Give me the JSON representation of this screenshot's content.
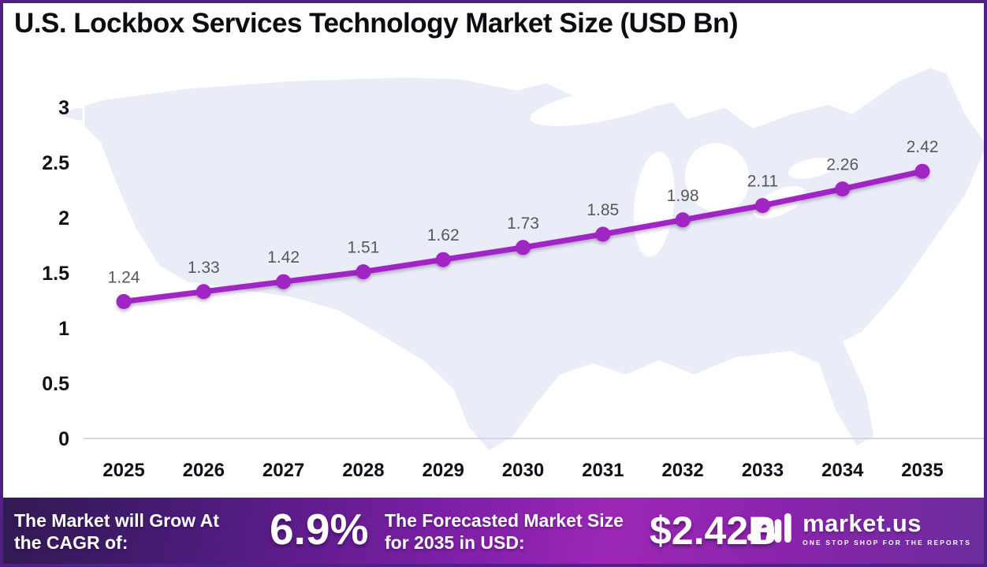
{
  "chart_data": {
    "type": "line",
    "title": "U.S. Lockbox Services Technology Market Size (USD Bn)",
    "categories": [
      "2025",
      "2026",
      "2027",
      "2028",
      "2029",
      "2030",
      "2031",
      "2032",
      "2033",
      "2034",
      "2035"
    ],
    "values": [
      1.24,
      1.33,
      1.42,
      1.51,
      1.62,
      1.73,
      1.85,
      1.98,
      2.11,
      2.26,
      2.42
    ],
    "xlabel": "",
    "ylabel": "",
    "ylim": [
      0,
      3
    ],
    "yticks": [
      0,
      0.5,
      1,
      1.5,
      2,
      2.5,
      3
    ],
    "grid": false,
    "legend": false,
    "line_color": "#A125C4",
    "marker_color": "#A125C4",
    "data_label_color": "#58585B",
    "axis_text_color": "#101018",
    "axis_line_color": "#FFFFFF",
    "baseline_color": "#D6D6DE",
    "map_fill_color": "#EAEDF8",
    "background_map": "united-states-silhouette"
  },
  "footer": {
    "cagr": {
      "label": "The Market will Grow At the CAGR of:",
      "value": "6.9%"
    },
    "forecast": {
      "label": "The Forecasted Market Size for 2035 in USD:",
      "value": "$2.42B"
    },
    "brand": {
      "name": "market.us",
      "tagline": "ONE STOP SHOP FOR THE REPORTS"
    }
  },
  "colors": {
    "frame_border": "#4E2282",
    "footer_gradient_left": "#311A52",
    "footer_gradient_mid": "#9C27B5",
    "footer_gradient_right": "#6B2D9D"
  }
}
